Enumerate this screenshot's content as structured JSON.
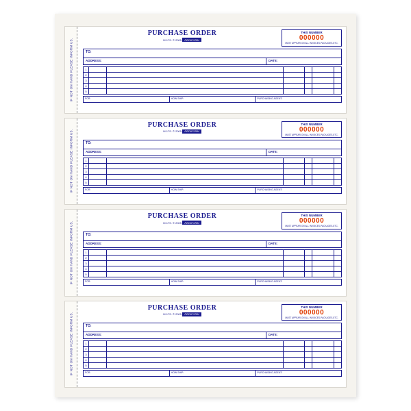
{
  "background_color": "#ffffff",
  "page_color": "#f5f3ee",
  "ink_color": "#1a1a8f",
  "num_forms": 4,
  "form": {
    "stub_text": "IF NOT ON HAND PLEASE INFORM US.",
    "title": "PURCHASE ORDER",
    "subtitle": "M.17S. © 2005",
    "brand": "REDIFORM",
    "this_number_label": "THIS NUMBER",
    "number": "000000",
    "number_color": "#e03a00",
    "disclaimer": "MUST APPEAR ON ALL INVOICES-PACKAGES-ETC.",
    "to_label": "TO:",
    "address_label": "ADDRESS:",
    "date_label": "DATE:",
    "row_count": 5,
    "columns": [
      "qty",
      "description",
      "price",
      "amount"
    ],
    "footer": {
      "for": "FOR:",
      "how_ship": "HOW SHIP:",
      "agent": "PURCHASING AGENT:"
    }
  }
}
